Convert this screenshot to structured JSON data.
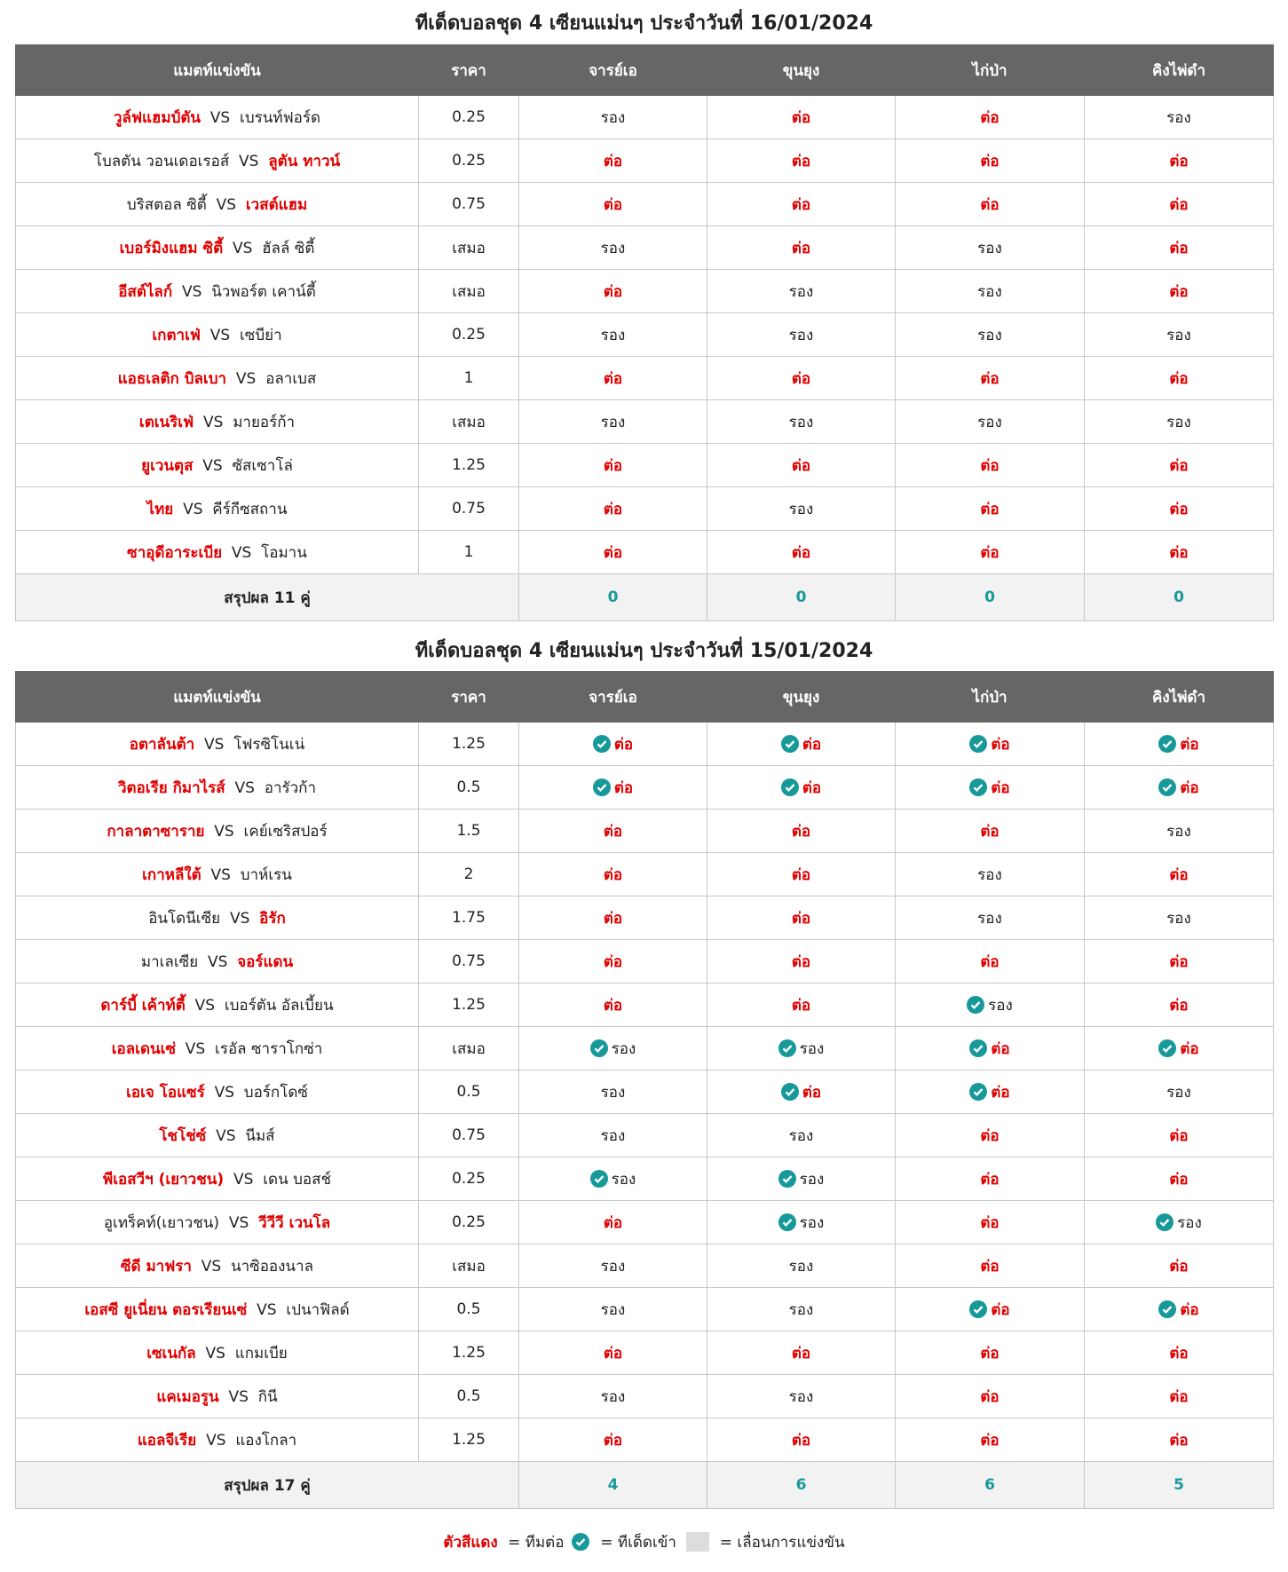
{
  "vs": "VS",
  "headers": [
    "แมตท์แข่งขัน",
    "ราคา",
    "จารย์เอ",
    "ขุนยุง",
    "ไก่ป่า",
    "คิงไพ่ดำ"
  ],
  "red_pick": "ต่อ",
  "tables": [
    {
      "title": "ทีเด็ดบอลชุด 4 เซียนแม่นๆ ประจำวันที่ 16/01/2024",
      "rows": [
        {
          "home": "วูล์ฟแฮมป์ตัน",
          "away": "เบรนท์ฟอร์ด",
          "fav": 0,
          "price": 0.25,
          "picks": [
            "รอง",
            "ต่อ",
            "ต่อ",
            "รอง"
          ]
        },
        {
          "home": "โบลตัน วอนเดอเรอส์",
          "away": "ลูตัน ทาวน์",
          "fav": 1,
          "price": 0.25,
          "picks": [
            "ต่อ",
            "ต่อ",
            "ต่อ",
            "ต่อ"
          ]
        },
        {
          "home": "บริสตอล ซิตี้",
          "away": "เวสต์แฮม",
          "fav": 1,
          "price": 0.75,
          "picks": [
            "ต่อ",
            "ต่อ",
            "ต่อ",
            "ต่อ"
          ]
        },
        {
          "home": "เบอร์มิงแฮม ซิตี้",
          "away": "ฮัลล์ ซิตี้",
          "fav": 0,
          "price": "เสมอ",
          "picks": [
            "รอง",
            "ต่อ",
            "รอง",
            "ต่อ"
          ]
        },
        {
          "home": "อีสต์ไลก์",
          "away": "นิวพอร์ต เคาน์ตี้",
          "fav": 0,
          "price": "เสมอ",
          "picks": [
            "ต่อ",
            "รอง",
            "รอง",
            "ต่อ"
          ]
        },
        {
          "home": "เกตาเฟ่",
          "away": "เซบีย่า",
          "fav": 0,
          "price": 0.25,
          "picks": [
            "รอง",
            "รอง",
            "รอง",
            "รอง"
          ]
        },
        {
          "home": "แอธเลติก บิลเบา",
          "away": "อลาเบส",
          "fav": 0,
          "price": 1,
          "picks": [
            "ต่อ",
            "ต่อ",
            "ต่อ",
            "ต่อ"
          ]
        },
        {
          "home": "เตเนริเฟ่",
          "away": "มายอร์ก้า",
          "fav": 0,
          "price": "เสมอ",
          "picks": [
            "รอง",
            "รอง",
            "รอง",
            "รอง"
          ]
        },
        {
          "home": "ยูเวนตุส",
          "away": "ซัสเซาโล่",
          "fav": 0,
          "price": 1.25,
          "picks": [
            "ต่อ",
            "ต่อ",
            "ต่อ",
            "ต่อ"
          ]
        },
        {
          "home": "ไทย",
          "away": "คีร์กีซสถาน",
          "fav": 0,
          "price": 0.75,
          "picks": [
            "ต่อ",
            "รอง",
            "ต่อ",
            "ต่อ"
          ]
        },
        {
          "home": "ซาอุดีอาระเบีย",
          "away": "โอมาน",
          "fav": 0,
          "price": 1,
          "picks": [
            "ต่อ",
            "ต่อ",
            "ต่อ",
            "ต่อ"
          ]
        }
      ],
      "summary_label": "สรุปผล 11 คู่",
      "summary": [
        0,
        0,
        0,
        0
      ]
    },
    {
      "title": "ทีเด็ดบอลชุด 4 เซียนแม่นๆ ประจำวันที่ 15/01/2024",
      "rows": [
        {
          "home": "อตาลันต้า",
          "away": "โฟรซิโนเน่",
          "fav": 0,
          "price": 1.25,
          "picks": [
            "ต่อ",
            "ต่อ",
            "ต่อ",
            "ต่อ"
          ],
          "hit": [
            0,
            1,
            2,
            3
          ]
        },
        {
          "home": "วิตอเรีย กิมาไรส์",
          "away": "อารัวก้า",
          "fav": 0,
          "price": 0.5,
          "picks": [
            "ต่อ",
            "ต่อ",
            "ต่อ",
            "ต่อ"
          ],
          "hit": [
            0,
            1,
            2,
            3
          ]
        },
        {
          "home": "กาลาตาซาราย",
          "away": "เคย์เซริสปอร์",
          "fav": 0,
          "price": 1.5,
          "picks": [
            "ต่อ",
            "ต่อ",
            "ต่อ",
            "รอง"
          ]
        },
        {
          "home": "เกาหลีใต้",
          "away": "บาห์เรน",
          "fav": 0,
          "price": 2,
          "picks": [
            "ต่อ",
            "ต่อ",
            "รอง",
            "ต่อ"
          ]
        },
        {
          "home": "อินโดนีเซีย",
          "away": "อิรัก",
          "fav": 1,
          "price": 1.75,
          "picks": [
            "ต่อ",
            "ต่อ",
            "รอง",
            "รอง"
          ]
        },
        {
          "home": "มาเลเซีย",
          "away": "จอร์แดน",
          "fav": 1,
          "price": 0.75,
          "picks": [
            "ต่อ",
            "ต่อ",
            "ต่อ",
            "ต่อ"
          ]
        },
        {
          "home": "ดาร์บี้ เค้าท์ตี้",
          "away": "เบอร์ตัน อัลเบี้ยน",
          "fav": 0,
          "price": 1.25,
          "picks": [
            "ต่อ",
            "ต่อ",
            "รอง",
            "ต่อ"
          ],
          "hit": [
            2
          ]
        },
        {
          "home": "เอลเดนเซ่",
          "away": "เรอัล ซาราโกซ่า",
          "fav": 0,
          "price": "เสมอ",
          "picks": [
            "รอง",
            "รอง",
            "ต่อ",
            "ต่อ"
          ],
          "hit": [
            0,
            1,
            2,
            3
          ]
        },
        {
          "home": "เอเจ โอแซร์",
          "away": "บอร์กโดซ์",
          "fav": 0,
          "price": 0.5,
          "picks": [
            "รอง",
            "ต่อ",
            "ต่อ",
            "รอง"
          ],
          "hit": [
            1,
            2
          ]
        },
        {
          "home": "โชโช่ซ์",
          "away": "นีมส์",
          "fav": 0,
          "price": 0.75,
          "picks": [
            "รอง",
            "รอง",
            "ต่อ",
            "ต่อ"
          ]
        },
        {
          "home": "พีเอสวีฯ (เยาวชน)",
          "away": "เดน บอสช์",
          "fav": 0,
          "price": 0.25,
          "picks": [
            "รอง",
            "รอง",
            "ต่อ",
            "ต่อ"
          ],
          "hit": [
            0,
            1
          ]
        },
        {
          "home": "อูเทร็คท์(เยาวชน)",
          "away": "วีวีวี เวนโล",
          "fav": 1,
          "price": 0.25,
          "picks": [
            "ต่อ",
            "รอง",
            "ต่อ",
            "รอง"
          ],
          "hit": [
            1,
            3
          ]
        },
        {
          "home": "ซีดี มาฟรา",
          "away": "นาซิอองนาล",
          "fav": 0,
          "price": "เสมอ",
          "picks": [
            "รอง",
            "รอง",
            "ต่อ",
            "ต่อ"
          ]
        },
        {
          "home": "เอสซี ยูเนี่ยน ตอรเรียนเซ่",
          "away": "เปนาฟิลด์",
          "fav": 0,
          "price": 0.5,
          "picks": [
            "รอง",
            "รอง",
            "ต่อ",
            "ต่อ"
          ],
          "hit": [
            2,
            3
          ]
        },
        {
          "home": "เซเนกัล",
          "away": "แกมเบีย",
          "fav": 0,
          "price": 1.25,
          "picks": [
            "ต่อ",
            "ต่อ",
            "ต่อ",
            "ต่อ"
          ]
        },
        {
          "home": "แคเมอรูน",
          "away": "กินี",
          "fav": 0,
          "price": 0.5,
          "picks": [
            "รอง",
            "รอง",
            "ต่อ",
            "ต่อ"
          ]
        },
        {
          "home": "แอลจีเรีย",
          "away": "แองโกลา",
          "fav": 0,
          "price": 1.25,
          "picks": [
            "ต่อ",
            "ต่อ",
            "ต่อ",
            "ต่อ"
          ]
        }
      ],
      "summary_label": "สรุปผล 17 คู่",
      "summary": [
        4,
        6,
        6,
        5
      ]
    }
  ],
  "legend": {
    "red": "ตัวสีแดง",
    "red_text": "= ทีมต่อ",
    "check_text": "= ทีเด็ดเข้า",
    "gray_text": "= เลื่อนการแข่งขัน"
  }
}
